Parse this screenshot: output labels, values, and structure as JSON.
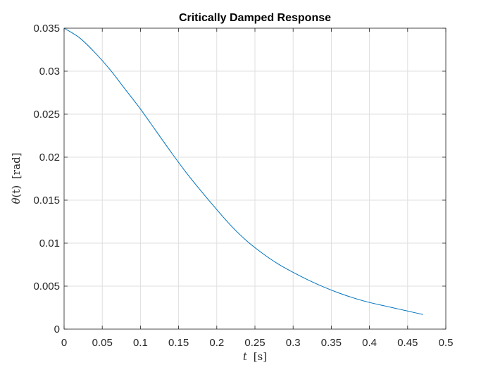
{
  "chart_data": {
    "type": "line",
    "title": "Critically Damped Response",
    "xlabel": {
      "var": "t",
      "unit": "[s]"
    },
    "ylabel": {
      "var": "θ",
      "arg": "(t)",
      "unit": "[rad]"
    },
    "xlim": [
      0,
      0.5
    ],
    "ylim": [
      0,
      0.035
    ],
    "xticks": [
      "0",
      "0.05",
      "0.1",
      "0.15",
      "0.2",
      "0.25",
      "0.3",
      "0.35",
      "0.4",
      "0.45",
      "0.5"
    ],
    "yticks": [
      "0",
      "0.005",
      "0.01",
      "0.015",
      "0.02",
      "0.025",
      "0.03",
      "0.035"
    ],
    "grid": true,
    "line_color": "#0072BD",
    "series": [
      {
        "x": [
          0,
          0.02,
          0.04,
          0.06,
          0.08,
          0.1,
          0.12,
          0.14,
          0.16,
          0.18,
          0.2,
          0.22,
          0.24,
          0.26,
          0.28,
          0.3,
          0.32,
          0.34,
          0.36,
          0.38,
          0.4,
          0.42,
          0.44,
          0.46,
          0.47
        ],
        "y": [
          0.035,
          0.0339,
          0.0322,
          0.0302,
          0.0279,
          0.0256,
          0.0231,
          0.0206,
          0.0182,
          0.016,
          0.0139,
          0.0119,
          0.0102,
          0.0088,
          0.0076,
          0.0066,
          0.0057,
          0.0049,
          0.0042,
          0.0036,
          0.0031,
          0.0027,
          0.0023,
          0.0019,
          0.0017
        ]
      }
    ]
  }
}
